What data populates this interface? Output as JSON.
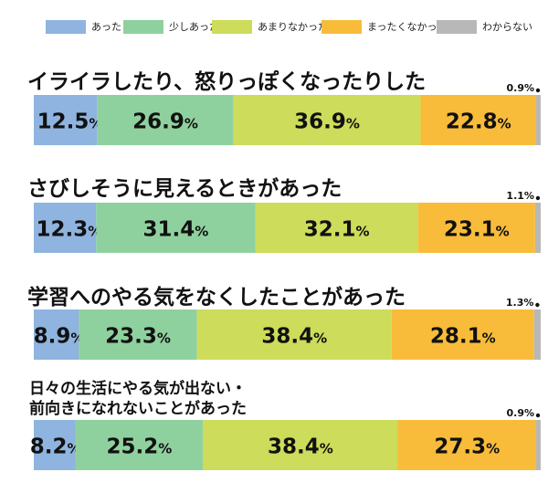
{
  "chart_data": {
    "type": "bar",
    "orientation": "horizontal",
    "stacked": true,
    "unit": "%",
    "legend": {
      "placement": "top",
      "entries": [
        {
          "name": "あった",
          "color": "#8fb4df"
        },
        {
          "name": "少しあった",
          "color": "#8fd19e"
        },
        {
          "name": "あまりなかった",
          "color": "#cddc5a"
        },
        {
          "name": "まったくなかった",
          "color": "#f8bc3a"
        },
        {
          "name": "わからない",
          "color": "#b8b8b8"
        }
      ]
    },
    "categories": [
      "イライラしたり、怒りっぽくなったりした",
      "さびしそうに見えるときがあった",
      "学習へのやる気をなくしたことがあった",
      "日々の生活にやる気が出ない・\n前向きになれないことがあった"
    ],
    "series": [
      {
        "name": "あった",
        "values": [
          12.5,
          12.3,
          8.9,
          8.2
        ]
      },
      {
        "name": "少しあった",
        "values": [
          26.9,
          31.4,
          23.3,
          25.2
        ]
      },
      {
        "name": "あまりなかった",
        "values": [
          36.9,
          32.1,
          38.4,
          38.4
        ]
      },
      {
        "name": "まったくなかった",
        "values": [
          22.8,
          23.1,
          28.1,
          27.3
        ]
      },
      {
        "name": "わからない",
        "values": [
          0.9,
          1.1,
          1.3,
          0.9
        ]
      }
    ],
    "xlim": [
      0,
      100
    ],
    "grid": false
  }
}
